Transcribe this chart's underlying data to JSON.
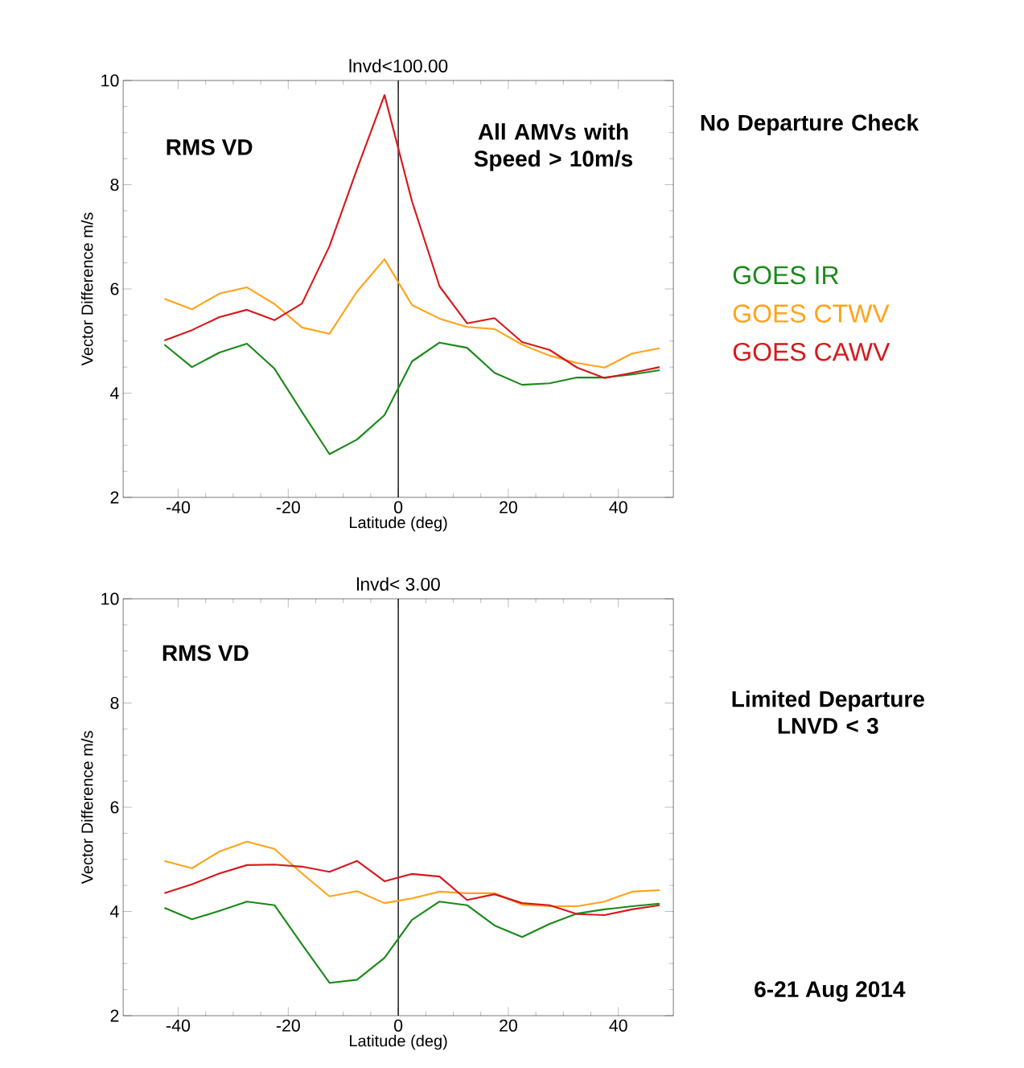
{
  "chart_data": [
    {
      "type": "line",
      "title": "lnvd<100.00",
      "xlabel": "Latitude (deg)",
      "ylabel": "Vector Difference m/s",
      "x": [
        -42.5,
        -37.5,
        -32.5,
        -27.5,
        -22.5,
        -17.5,
        -12.5,
        -7.5,
        -2.5,
        2.5,
        7.5,
        12.5,
        17.5,
        22.5,
        27.5,
        32.5,
        37.5,
        42.5,
        47.5
      ],
      "series": [
        {
          "name": "GOES IR",
          "color": "#1a8a1a",
          "values": [
            4.93,
            4.5,
            4.78,
            4.95,
            4.47,
            3.64,
            2.83,
            3.11,
            3.58,
            4.61,
            4.97,
            4.87,
            4.39,
            4.16,
            4.19,
            4.3,
            4.3,
            4.36,
            4.44
          ]
        },
        {
          "name": "GOES CTWV",
          "color": "#ffa31a",
          "values": [
            5.81,
            5.61,
            5.91,
            6.03,
            5.71,
            5.26,
            5.14,
            5.95,
            6.57,
            5.69,
            5.43,
            5.27,
            5.23,
            4.93,
            4.72,
            4.58,
            4.49,
            4.76,
            4.86
          ]
        },
        {
          "name": "GOES CAWV",
          "color": "#d7191c",
          "values": [
            5.01,
            5.21,
            5.46,
            5.6,
            5.4,
            5.72,
            6.82,
            8.3,
            9.72,
            7.68,
            6.05,
            5.34,
            5.44,
            4.98,
            4.83,
            4.49,
            4.29,
            4.39,
            4.5
          ]
        }
      ],
      "xlim": [
        -50,
        50
      ],
      "ylim": [
        2,
        10
      ],
      "xticks": [
        -40,
        -20,
        0,
        20,
        40
      ],
      "yticks": [
        2,
        4,
        6,
        8,
        10
      ],
      "ref_lines": [
        {
          "axis": "x",
          "value": 0
        }
      ],
      "legend": "right",
      "grid": false,
      "annotations": [
        "RMS VD",
        "All AMVs with Speed > 10m/s",
        "No Departure Check"
      ]
    },
    {
      "type": "line",
      "title": "lnvd< 3.00",
      "xlabel": "Latitude (deg)",
      "ylabel": "Vector Difference m/s",
      "x": [
        -42.5,
        -37.5,
        -32.5,
        -27.5,
        -22.5,
        -17.5,
        -12.5,
        -7.5,
        -2.5,
        2.5,
        7.5,
        12.5,
        17.5,
        22.5,
        27.5,
        32.5,
        37.5,
        42.5,
        47.5
      ],
      "series": [
        {
          "color": "#1a8a1a",
          "values": [
            4.07,
            3.85,
            4.01,
            4.19,
            4.12,
            3.37,
            2.63,
            2.69,
            3.11,
            3.84,
            4.19,
            4.12,
            3.73,
            3.51,
            3.76,
            3.96,
            4.04,
            4.1,
            4.15
          ]
        },
        {
          "color": "#ffa31a",
          "values": [
            4.97,
            4.83,
            5.15,
            5.34,
            5.2,
            4.73,
            4.29,
            4.39,
            4.16,
            4.25,
            4.38,
            4.35,
            4.35,
            4.13,
            4.1,
            4.1,
            4.19,
            4.38,
            4.41
          ]
        },
        {
          "color": "#d7191c",
          "values": [
            4.35,
            4.52,
            4.73,
            4.89,
            4.9,
            4.86,
            4.76,
            4.97,
            4.58,
            4.72,
            4.67,
            4.22,
            4.33,
            4.16,
            4.12,
            3.95,
            3.93,
            4.04,
            4.12
          ]
        }
      ],
      "xlim": [
        -50,
        50
      ],
      "ylim": [
        2,
        10
      ],
      "xticks": [
        -40,
        -20,
        0,
        20,
        40
      ],
      "yticks": [
        2,
        4,
        6,
        8,
        10
      ],
      "ref_lines": [
        {
          "axis": "x",
          "value": 0
        }
      ],
      "grid": false,
      "annotations": [
        "RMS VD",
        "Limited Departure LNVD < 3",
        "6-21 Aug 2014"
      ]
    }
  ]
}
